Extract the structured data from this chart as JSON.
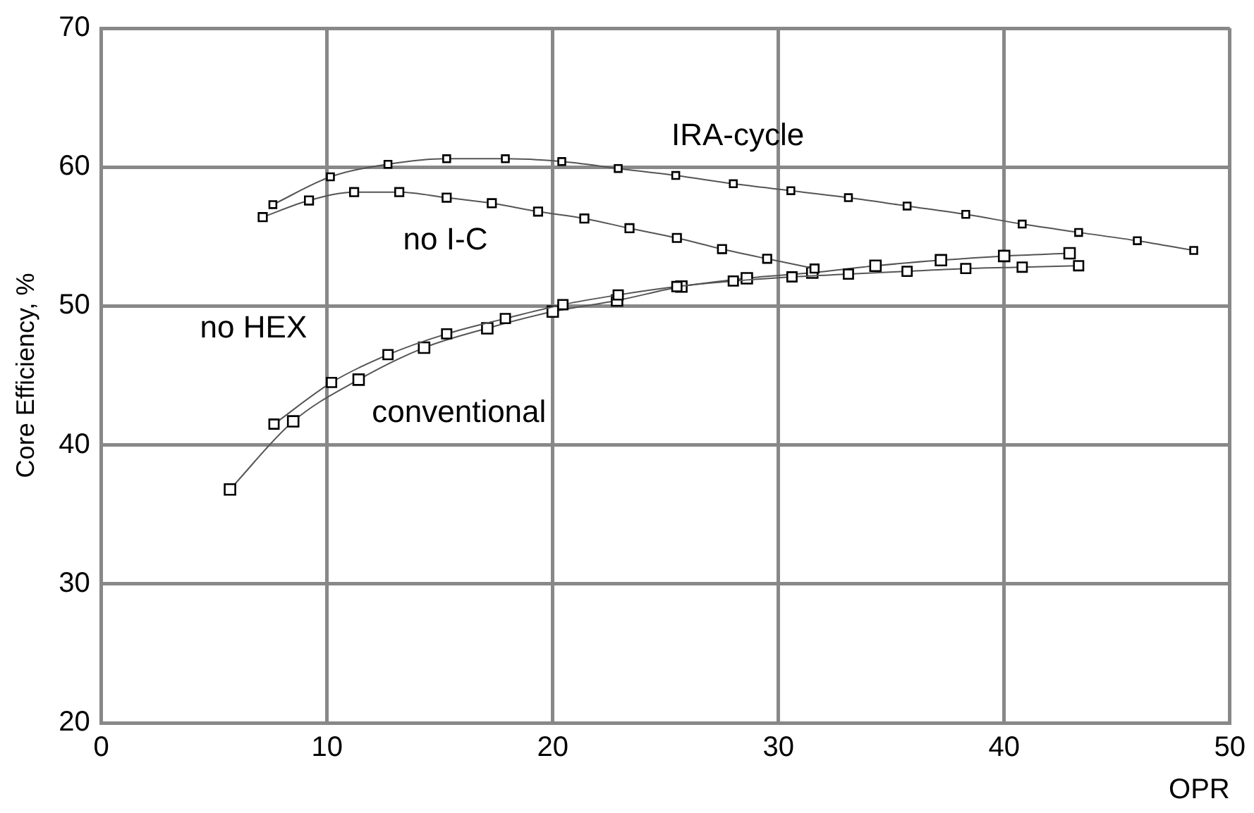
{
  "chart_data": {
    "type": "line",
    "xlabel": "OPR",
    "ylabel": "Core Efficiency, %",
    "xlim": [
      0,
      50
    ],
    "ylim": [
      20,
      70
    ],
    "xticks": [
      0,
      10,
      20,
      30,
      40,
      50
    ],
    "yticks": [
      20,
      30,
      40,
      50,
      60,
      70
    ],
    "grid": true,
    "legend": false,
    "marker": "square",
    "line_style": "solid",
    "series": [
      {
        "name": "IRA-cycle",
        "color": "#000000",
        "x": [
          7.6,
          10.15,
          12.7,
          15.3,
          17.9,
          20.4,
          22.9,
          25.45,
          28.0,
          30.55,
          33.1,
          35.7,
          38.3,
          40.8,
          43.3,
          45.9,
          48.4
        ],
        "values": [
          57.3,
          59.3,
          60.2,
          60.6,
          60.6,
          60.4,
          59.9,
          59.4,
          58.8,
          58.3,
          57.8,
          57.2,
          56.6,
          55.9,
          55.3,
          54.7,
          54.0
        ]
      },
      {
        "name": "no I-C",
        "color": "#000000",
        "x": [
          7.15,
          9.2,
          11.2,
          13.2,
          15.3,
          17.3,
          19.35,
          21.4,
          23.4,
          25.5,
          27.5,
          29.5,
          31.6
        ],
        "values": [
          56.4,
          57.6,
          58.2,
          58.2,
          57.8,
          57.4,
          56.8,
          56.3,
          55.6,
          54.9,
          54.1,
          53.4,
          52.7
        ]
      },
      {
        "name": "no HEX",
        "color": "#000000",
        "x": [
          7.65,
          10.2,
          12.7,
          15.3,
          17.9,
          20.45,
          22.9,
          25.5,
          28.0,
          30.6,
          33.1,
          35.7,
          38.3,
          40.8,
          43.3
        ],
        "values": [
          41.5,
          44.5,
          46.5,
          48.0,
          49.1,
          50.1,
          50.8,
          51.4,
          51.8,
          52.1,
          52.3,
          52.5,
          52.7,
          52.8,
          52.9
        ]
      },
      {
        "name": "conventional",
        "color": "#000000",
        "x": [
          5.7,
          8.5,
          11.4,
          14.3,
          17.1,
          20.0,
          22.85,
          25.7,
          28.6,
          31.5,
          34.3,
          37.2,
          40.0,
          42.9
        ],
        "values": [
          36.8,
          41.7,
          44.7,
          47.0,
          48.4,
          49.6,
          50.4,
          51.4,
          52.0,
          52.4,
          52.9,
          53.3,
          53.6,
          53.8
        ]
      }
    ]
  }
}
